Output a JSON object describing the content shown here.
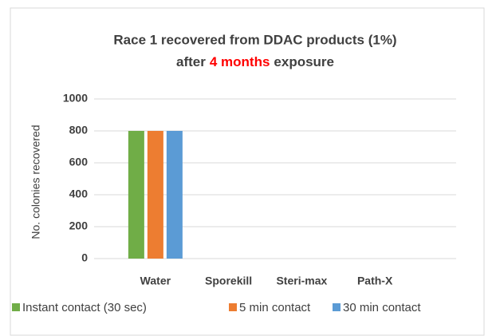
{
  "chart_data": {
    "type": "bar",
    "title": {
      "line1": "Race 1 recovered from DDAC products (1%)",
      "before": "after",
      "highlight": "4 months",
      "after": "exposure"
    },
    "highlight_color": "#ff0000",
    "y_label": "No. colonies recovered",
    "categories": [
      "Water",
      "Sporekill",
      "Steri-max",
      "Path-X"
    ],
    "series": [
      {
        "name": "Instant contact (30 sec)",
        "color": "#70ad47",
        "values": [
          800,
          0,
          0,
          0
        ]
      },
      {
        "name": "5 min contact",
        "color": "#ed7d31",
        "values": [
          800,
          0,
          0,
          0
        ]
      },
      {
        "name": "30 min contact",
        "color": "#5b9bd5",
        "values": [
          800,
          0,
          0,
          0
        ]
      }
    ],
    "ylim": [
      0,
      1000
    ],
    "yticks": [
      0,
      200,
      400,
      600,
      800,
      1000
    ],
    "grid": true,
    "legend": "bottom"
  }
}
